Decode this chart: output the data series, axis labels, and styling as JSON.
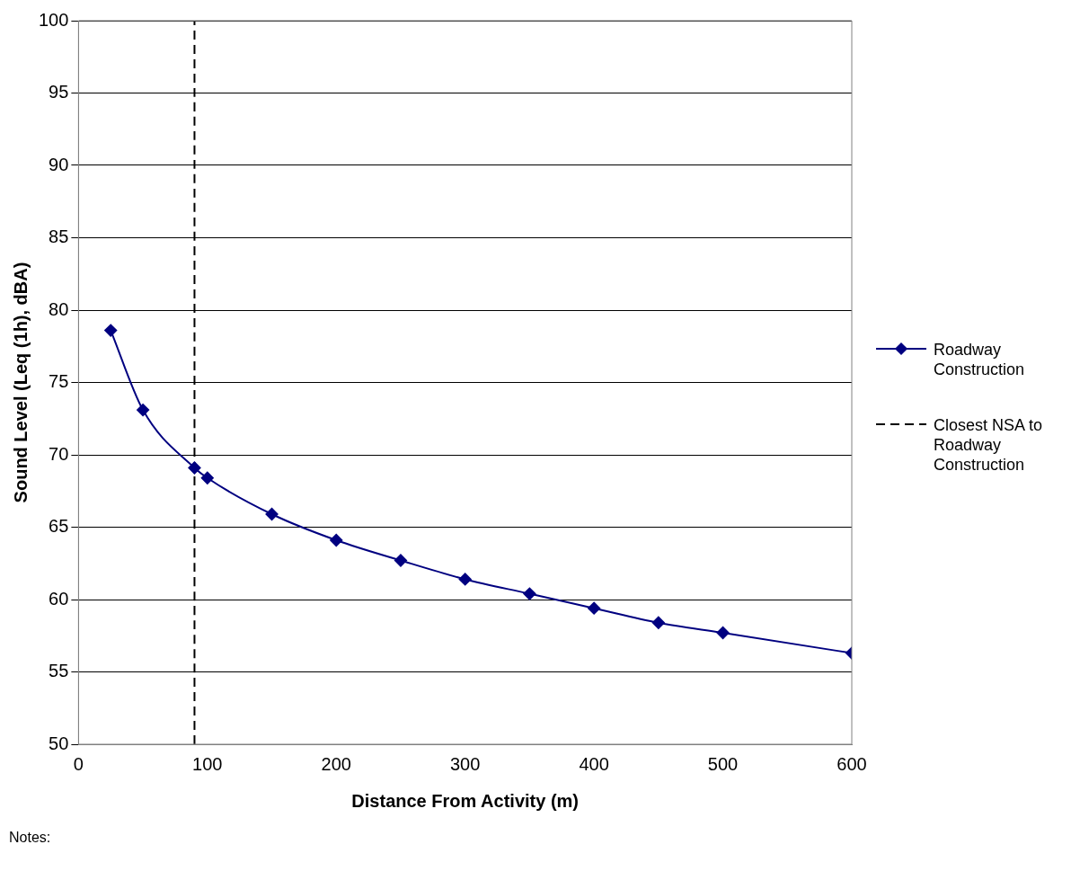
{
  "chart_data": {
    "type": "line",
    "xlabel": "Distance From Activity (m)",
    "ylabel": "Sound Level (Leq (1h), dBA)",
    "xlim": [
      0,
      600
    ],
    "xticks": [
      0,
      100,
      200,
      300,
      400,
      500,
      600
    ],
    "ylim": [
      50,
      100
    ],
    "yticks": [
      50,
      55,
      60,
      65,
      70,
      75,
      80,
      85,
      90,
      95,
      100
    ],
    "grid": "y",
    "legend": "right",
    "series": [
      {
        "name": "Roadway Construction",
        "color": "#000080",
        "marker": "diamond",
        "line_style": "solid",
        "x": [
          25,
          50,
          90,
          100,
          150,
          200,
          250,
          300,
          350,
          400,
          450,
          500,
          600
        ],
        "values": [
          78.6,
          73.1,
          69.1,
          68.4,
          65.9,
          64.1,
          62.7,
          61.4,
          60.4,
          59.4,
          58.4,
          57.7,
          56.3
        ]
      },
      {
        "name": "Closest NSA to Roadway Construction",
        "color": "#000000",
        "marker": "none",
        "line_style": "dashed",
        "x": [
          90,
          90
        ],
        "values": [
          50,
          100
        ]
      }
    ],
    "annotations": [
      "Notes:"
    ]
  }
}
